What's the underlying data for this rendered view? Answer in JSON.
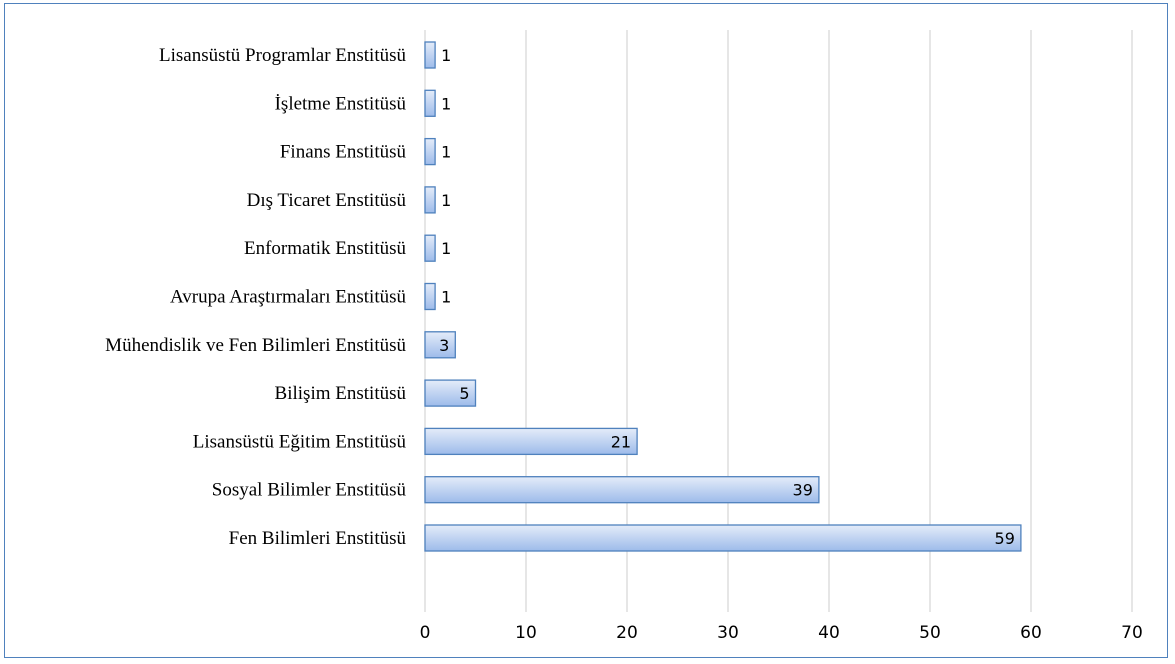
{
  "chart_data": {
    "type": "bar",
    "orientation": "horizontal",
    "categories": [
      "Lisansüstü Programlar Enstitüsü",
      "İşletme Enstitüsü",
      "Finans Enstitüsü",
      "Dış Ticaret Enstitüsü",
      "Enformatik Enstitüsü",
      "Avrupa Araştırmaları Enstitüsü",
      "Mühendislik ve Fen Bilimleri Enstitüsü",
      "Bilişim Enstitüsü",
      "Lisansüstü Eğitim Enstitüsü",
      "Sosyal Bilimler Enstitüsü",
      "Fen Bilimleri Enstitüsü"
    ],
    "values": [
      1,
      1,
      1,
      1,
      1,
      1,
      3,
      5,
      21,
      39,
      59
    ],
    "xlim": [
      0,
      70
    ],
    "xticks": [
      0,
      10,
      20,
      30,
      40,
      50,
      60,
      70
    ],
    "title": "",
    "xlabel": "",
    "ylabel": "",
    "grid": "vertical",
    "legend": "none",
    "colors": {
      "bar_fill_light": "#e4ecf9",
      "bar_fill_dark": "#9dbbea",
      "bar_stroke": "#4f81bd",
      "grid": "#d9d9d9",
      "frame": "#4f81bd"
    }
  }
}
